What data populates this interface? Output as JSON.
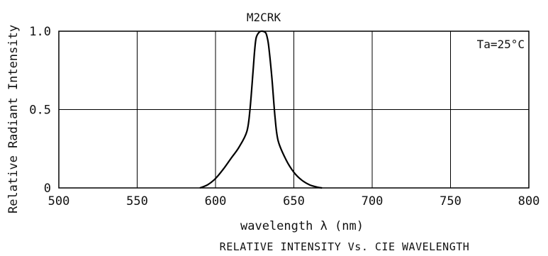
{
  "chart_data": {
    "type": "line",
    "title": "M2CRK",
    "caption": "RELATIVE INTENSITY Vs. CIE WAVELENGTH",
    "xlabel": "wavelength λ (nm)",
    "ylabel": "Relative Radiant Intensity",
    "annotation": "Ta=25°C",
    "xlim": [
      500,
      800
    ],
    "ylim": [
      0,
      1.0
    ],
    "x_ticks": [
      "500",
      "550",
      "600",
      "650",
      "700",
      "750",
      "800"
    ],
    "y_ticks": [
      "0",
      "0.5",
      "1.0"
    ],
    "grid": true,
    "series": [
      {
        "x": [
          590,
          595,
          600,
          605,
          610,
          615,
          620,
          622,
          624,
          625,
          626,
          628,
          630,
          632,
          633,
          634,
          636,
          638,
          640,
          645,
          650,
          655,
          660,
          665,
          668
        ],
        "values": [
          0.0,
          0.02,
          0.06,
          0.12,
          0.19,
          0.26,
          0.36,
          0.5,
          0.75,
          0.88,
          0.96,
          0.995,
          1.0,
          0.99,
          0.96,
          0.9,
          0.7,
          0.45,
          0.3,
          0.18,
          0.1,
          0.05,
          0.02,
          0.005,
          0.0
        ]
      }
    ],
    "colors": {
      "line": "#000000",
      "grid": "#000000"
    }
  }
}
